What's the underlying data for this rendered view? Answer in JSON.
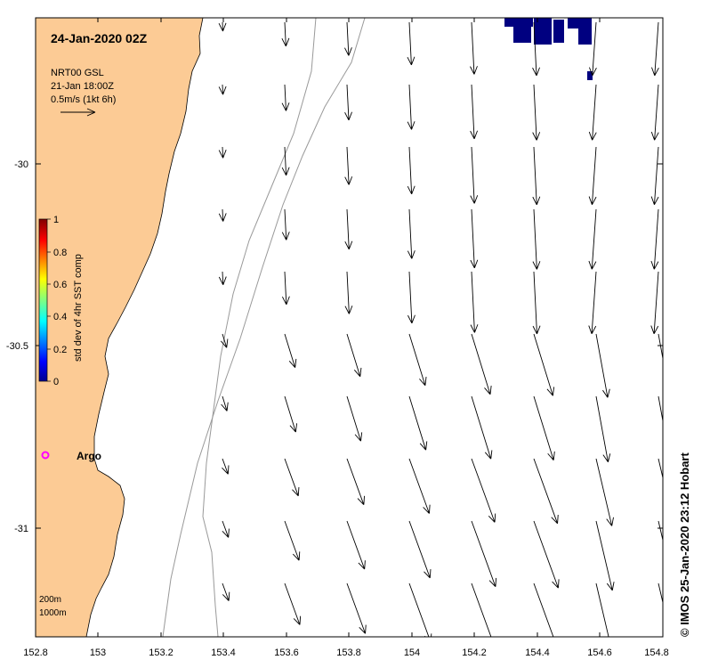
{
  "map": {
    "title": "24-Jan-2020 02Z",
    "product": "NRT00 GSL",
    "product_time": "21-Jan 18:00Z",
    "scale_label": "0.5m/s (1kt 6h)",
    "argo_label": "Argo",
    "credit": "© IMOS 25-Jan-2020 23:12 Hobart",
    "isobaths": [
      "200m",
      "1000m"
    ],
    "colors": {
      "land": "#fccb95",
      "argo": "#ff00ff",
      "data_patch": "#000080"
    }
  },
  "axes": {
    "x_ticks": [
      "152.8",
      "153",
      "153.2",
      "153.4",
      "153.6",
      "153.8",
      "154",
      "154.2",
      "154.4",
      "154.6",
      "154.8"
    ],
    "y_ticks": [
      "-30",
      "-30.5",
      "-31"
    ],
    "x_range": [
      152.8,
      154.8
    ],
    "y_range": [
      -31.3,
      -29.6
    ]
  },
  "colorbar": {
    "label": "std dev of 4hr SST comp",
    "ticks": [
      "0",
      "0.2",
      "0.4",
      "0.6",
      "0.8",
      "1"
    ]
  }
}
